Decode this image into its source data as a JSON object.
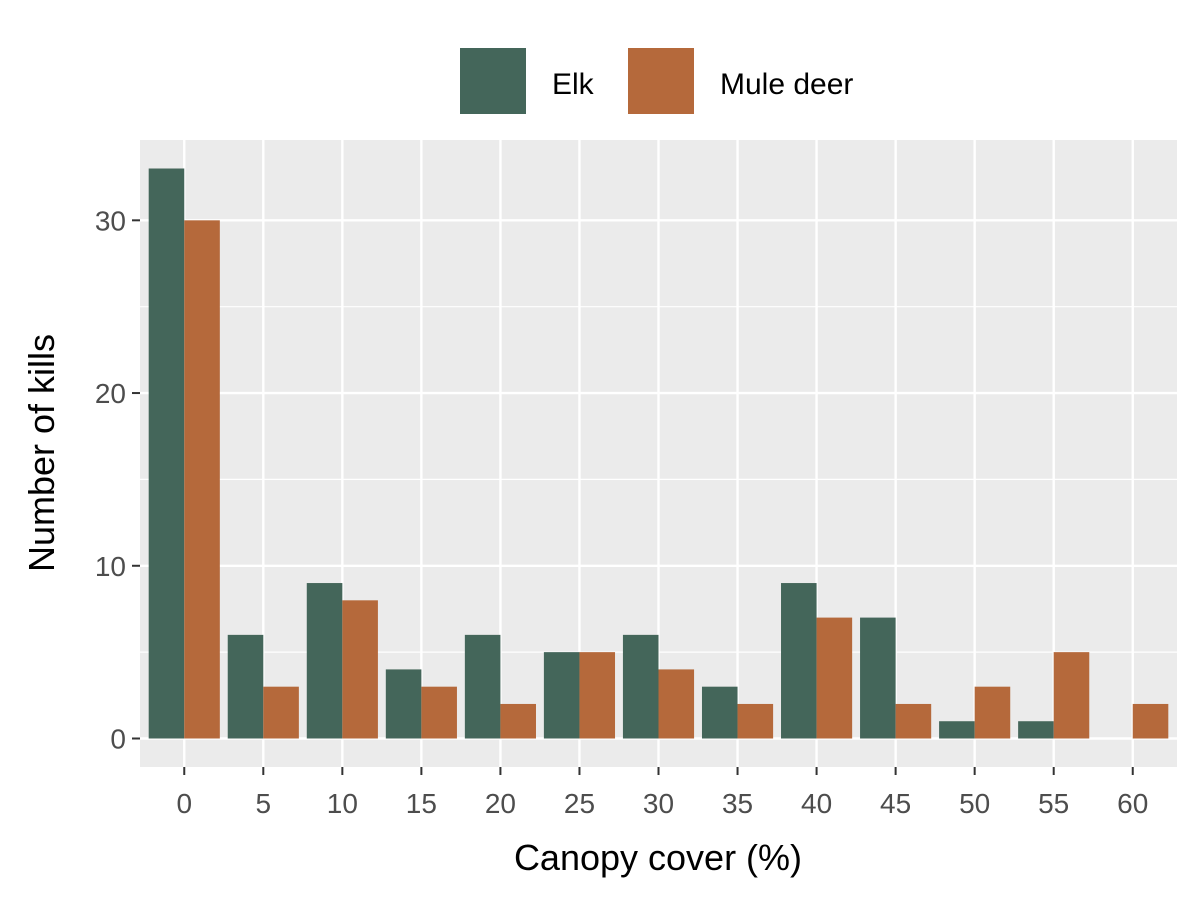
{
  "chart_data": {
    "type": "bar",
    "title": "",
    "xlabel": "Canopy cover (%)",
    "ylabel": "Number of kills",
    "categories": [
      "0",
      "5",
      "10",
      "15",
      "20",
      "25",
      "30",
      "35",
      "40",
      "45",
      "50",
      "55",
      "60"
    ],
    "series": [
      {
        "name": "Elk",
        "color": "#44665A",
        "values": [
          33,
          6,
          9,
          4,
          6,
          5,
          6,
          3,
          9,
          7,
          1,
          1,
          0
        ]
      },
      {
        "name": "Mule deer",
        "color": "#B5693B",
        "values": [
          30,
          3,
          8,
          3,
          2,
          5,
          4,
          2,
          7,
          2,
          3,
          5,
          2
        ]
      }
    ],
    "x_range": [
      -2.8,
      62.8
    ],
    "ylim": [
      -1.65,
      34.65
    ],
    "yticks": [
      0,
      10,
      20,
      30
    ],
    "legend_position": "top",
    "grid": true,
    "panel_background": "#EBEBEB"
  }
}
